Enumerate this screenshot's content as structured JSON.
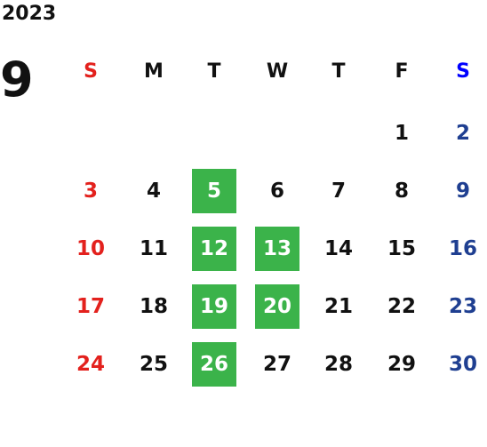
{
  "year": "2023",
  "month": "9",
  "weekdays": [
    "S",
    "M",
    "T",
    "W",
    "T",
    "F",
    "S"
  ],
  "weeks": [
    [
      null,
      null,
      null,
      null,
      null,
      1,
      2
    ],
    [
      3,
      4,
      5,
      6,
      7,
      8,
      9
    ],
    [
      10,
      11,
      12,
      13,
      14,
      15,
      16
    ],
    [
      17,
      18,
      19,
      20,
      21,
      22,
      23
    ],
    [
      24,
      25,
      26,
      27,
      28,
      29,
      30
    ]
  ],
  "highlighted": [
    5,
    12,
    13,
    19,
    20,
    26
  ],
  "colors": {
    "sunday": "#e3211d",
    "saturday_header": "#0000ff",
    "saturday": "#1f3f91",
    "weekday": "#111111",
    "highlight": "#3bb34a",
    "highlight_text": "#ffffff"
  }
}
